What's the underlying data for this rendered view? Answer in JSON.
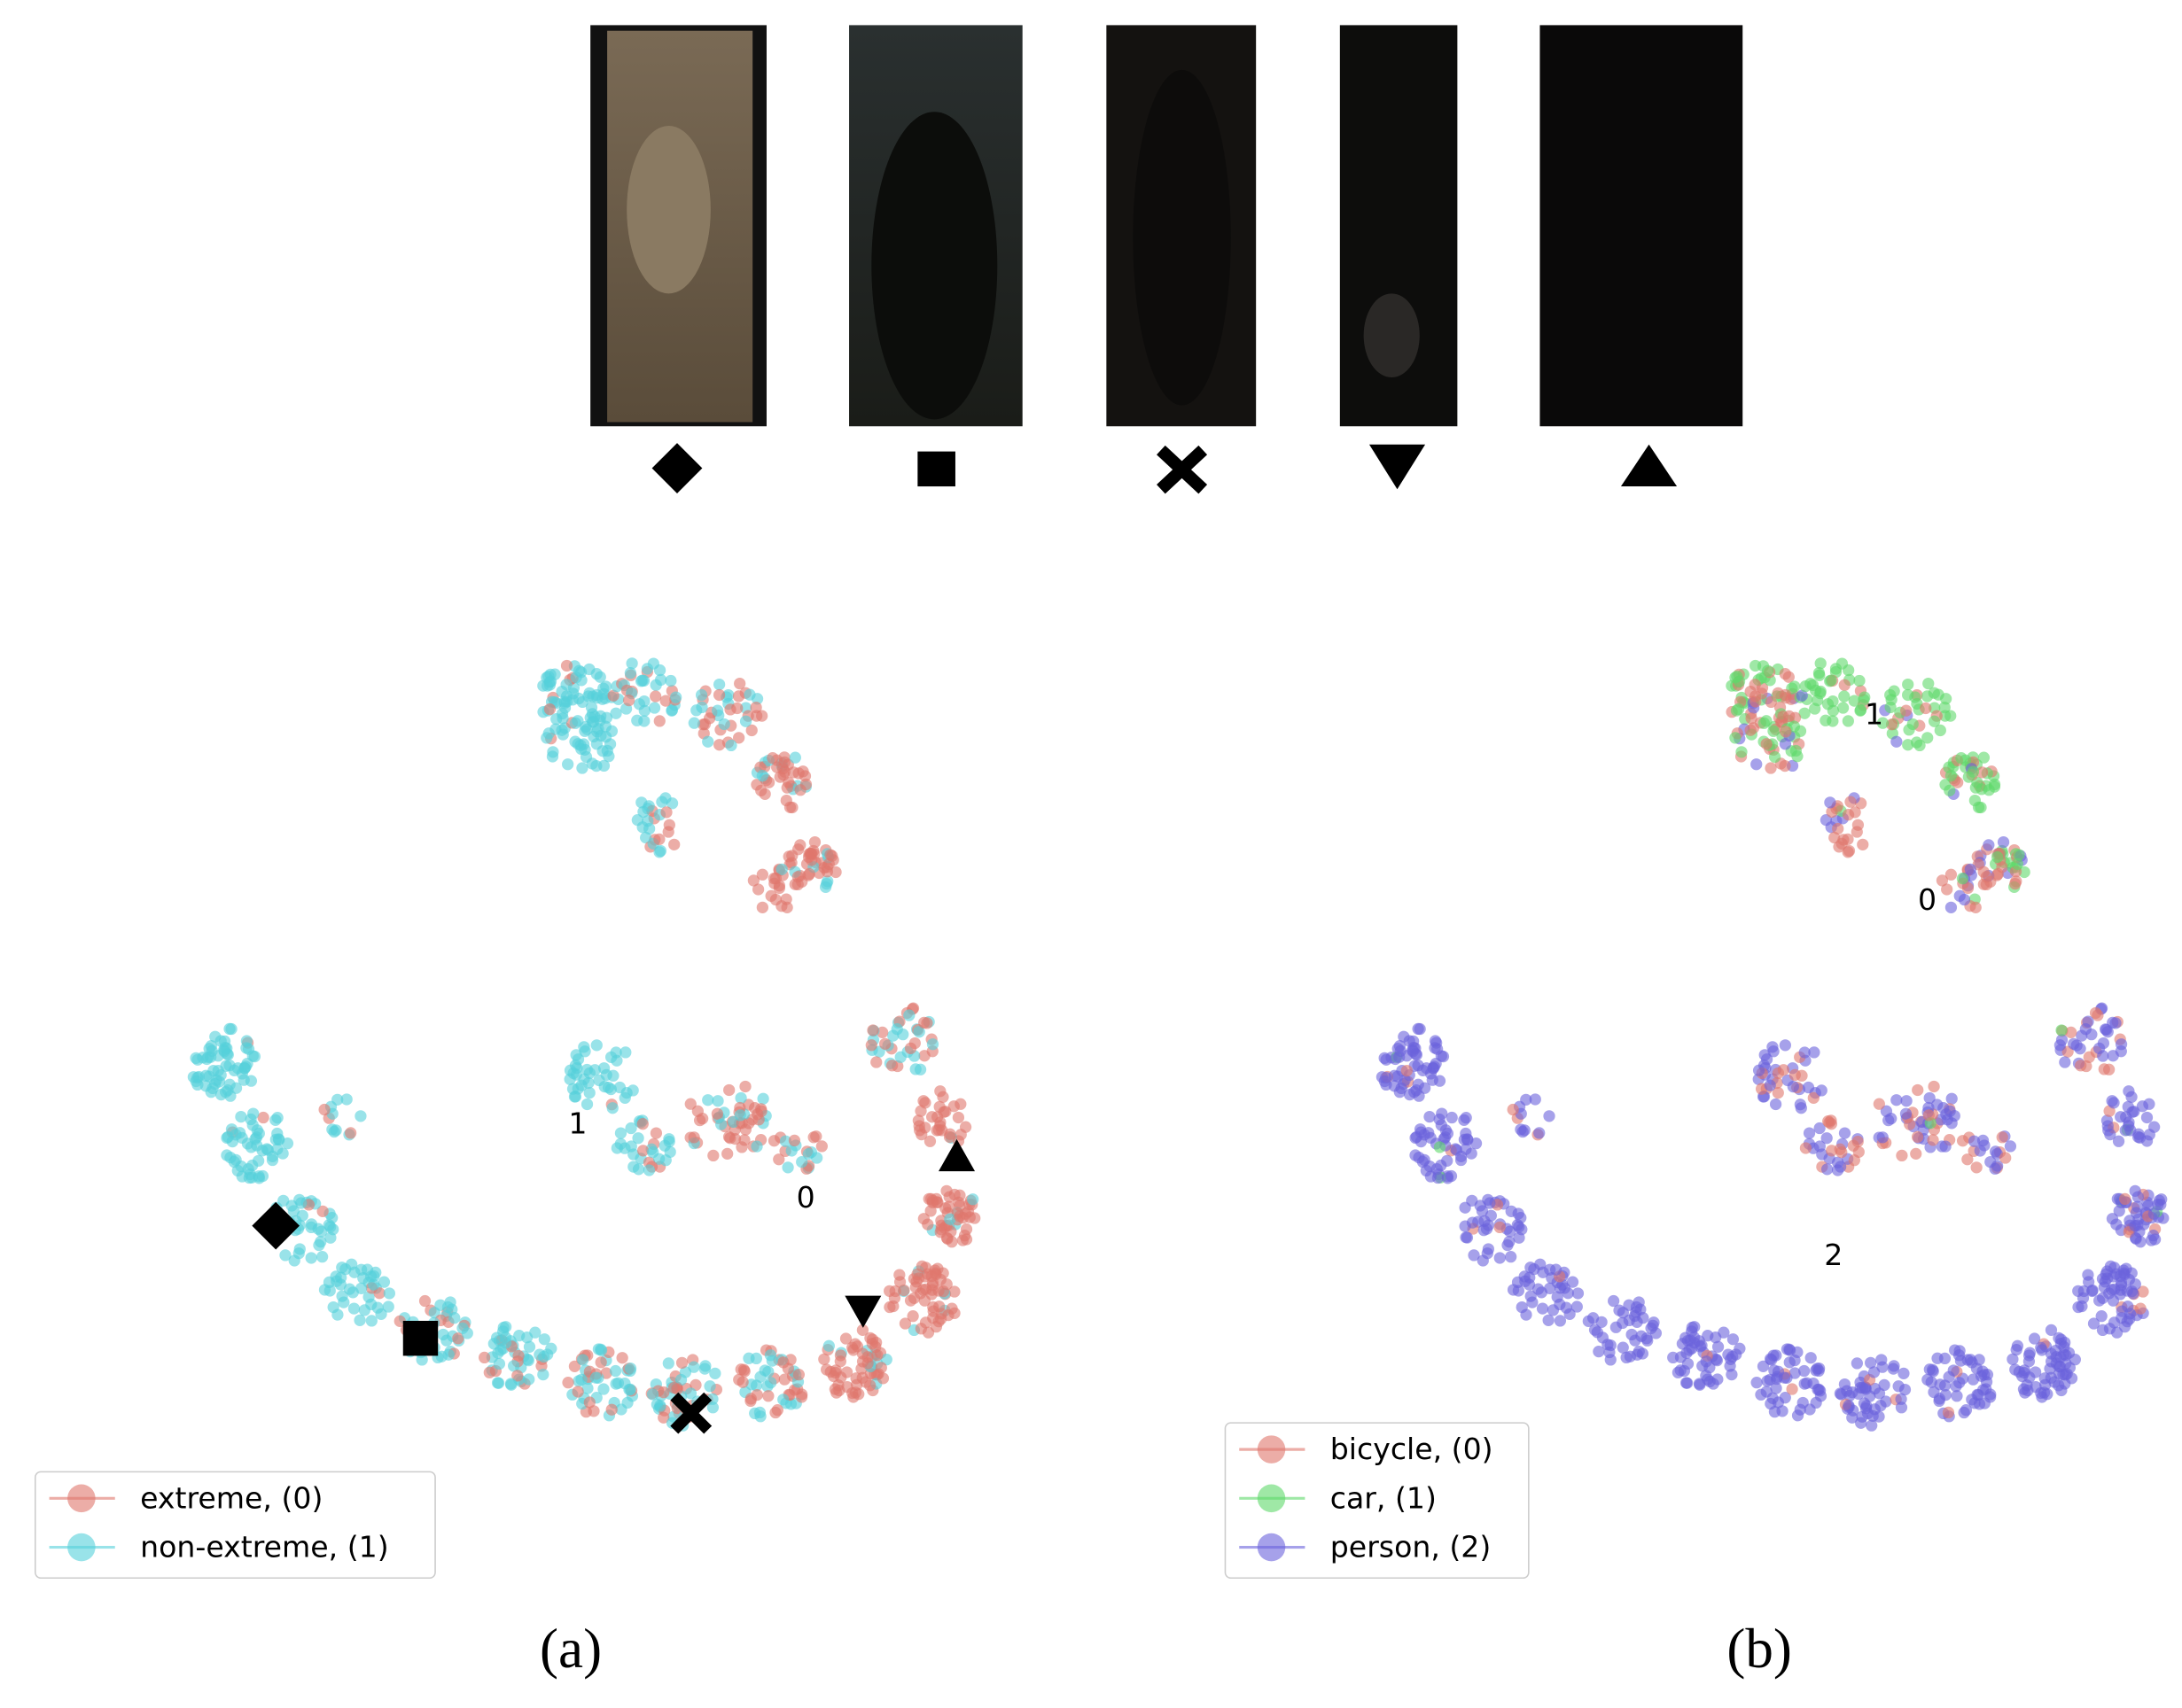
{
  "panel_a": {
    "caption": "(a)",
    "cluster_labels": [
      "1",
      "0"
    ],
    "legend": [
      {
        "name": "extreme, (0)",
        "color": "#e0766d"
      },
      {
        "name": "non-extreme, (1)",
        "color": "#55d0da"
      }
    ]
  },
  "panel_b": {
    "caption": "(b)",
    "cluster_labels": [
      "1",
      "0",
      "2"
    ],
    "legend": [
      {
        "name": "bicycle, (0)",
        "color": "#e0766d"
      },
      {
        "name": "car, (1)",
        "color": "#5fd86a"
      },
      {
        "name": "person, (2)",
        "color": "#6a62dc"
      }
    ]
  }
}
